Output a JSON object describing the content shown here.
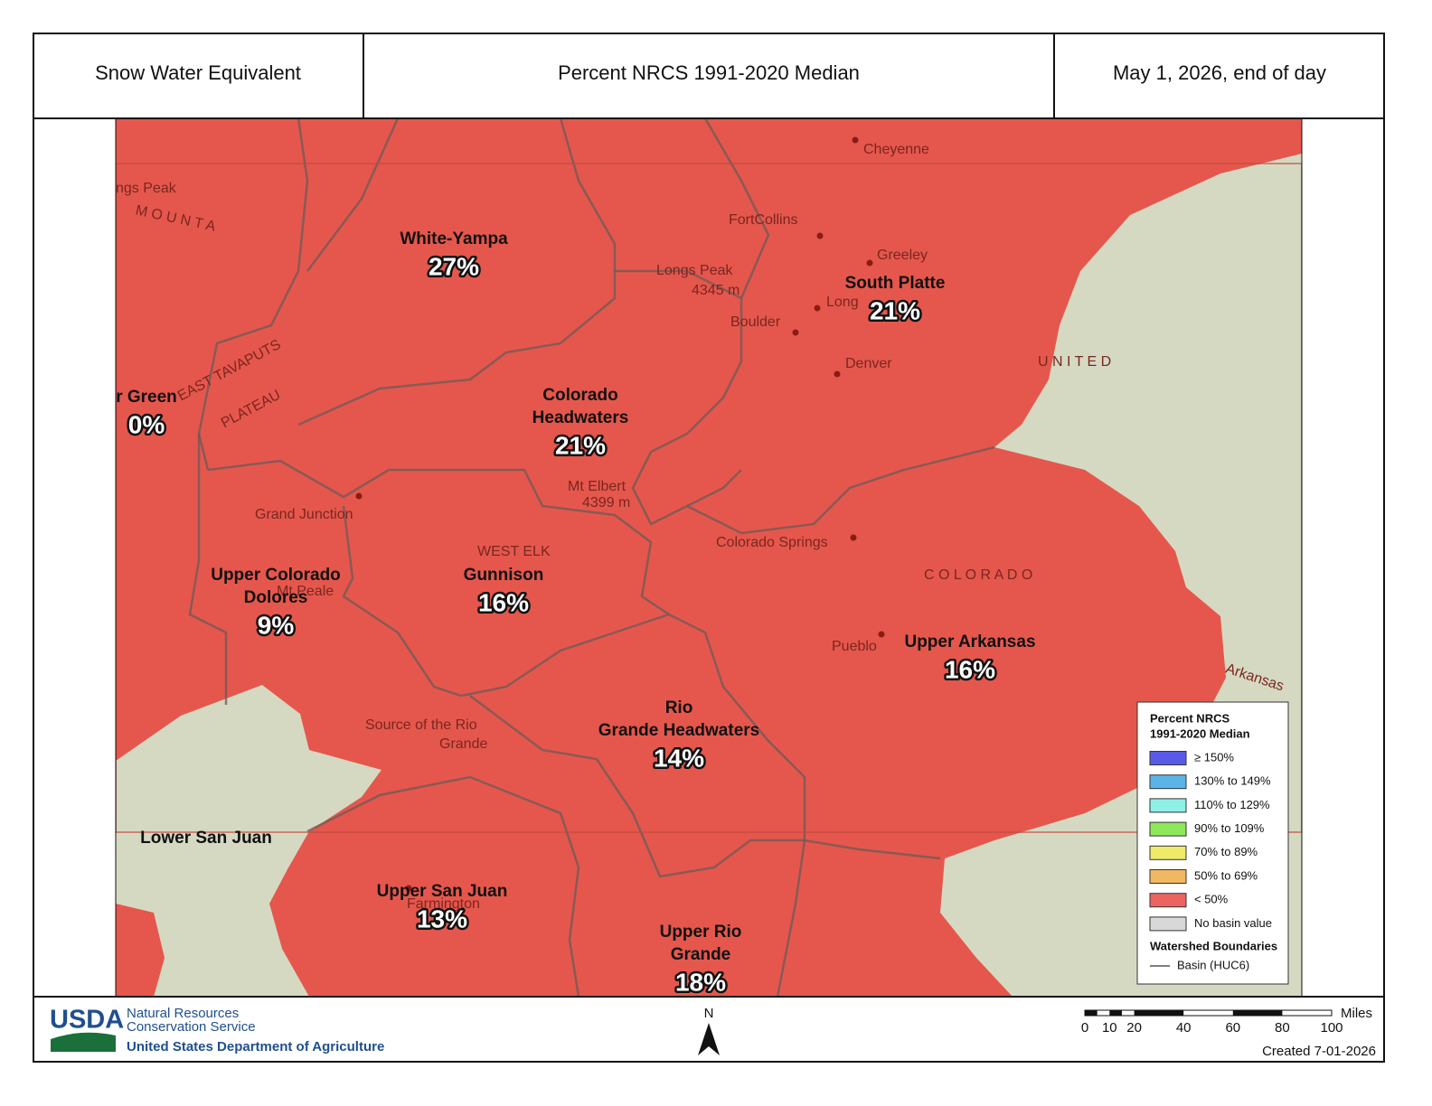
{
  "header": {
    "title": "Snow Water Equivalent",
    "metric": "Percent NRCS 1991-2020 Median",
    "date": "May 1, 2026, end of day"
  },
  "basins": [
    {
      "name_lines": [
        "White-Yampa"
      ],
      "percent": "27%"
    },
    {
      "name_lines": [
        "South Platte"
      ],
      "percent": "21%"
    },
    {
      "name_lines": [
        "r Green"
      ],
      "percent": "0%"
    },
    {
      "name_lines": [
        "Colorado",
        "Headwaters"
      ],
      "percent": "21%"
    },
    {
      "name_lines": [
        "Upper Colorado",
        "Dolores"
      ],
      "percent": "9%"
    },
    {
      "name_lines": [
        "Gunnison"
      ],
      "percent": "16%"
    },
    {
      "name_lines": [
        "Upper Arkansas"
      ],
      "percent": "16%"
    },
    {
      "name_lines": [
        "Rio",
        "Grande Headwaters"
      ],
      "percent": "14%"
    },
    {
      "name_lines": [
        "Lower San Juan"
      ]
    },
    {
      "name_lines": [
        "Upper San Juan"
      ],
      "percent": "13%"
    },
    {
      "name_lines": [
        "Upper Rio",
        "Grande"
      ],
      "percent": "18%"
    }
  ],
  "places": [
    "Cheyenne",
    "FortCollins",
    "Greeley",
    "Longs Peak",
    "4345 m",
    "Long",
    "Boulder",
    "Denver",
    "U N I T E D",
    "Grand Junction",
    "Mt Elbert",
    "4399 m",
    "Colorado Springs",
    "C O L O R A D O",
    "WEST ELK",
    "Mt Peale",
    "Pueblo",
    "Arkansas",
    "Source of the Rio",
    "Grande",
    "Farmington",
    "ngs Peak",
    "M O U N T A",
    "EAST TAVAPUTS",
    "PLATEAU"
  ],
  "legend": {
    "title_lines": [
      "Percent NRCS",
      "1991-2020 Median"
    ],
    "items": [
      {
        "label": "≥ 150%",
        "color": "#5a5ae8"
      },
      {
        "label": "130% to 149%",
        "color": "#5ab4e8"
      },
      {
        "label": "110% to 129%",
        "color": "#8ef0e6"
      },
      {
        "label": "90% to 109%",
        "color": "#8ee85a"
      },
      {
        "label": "70% to 89%",
        "color": "#eeea6a"
      },
      {
        "label": "50% to 69%",
        "color": "#f0b860"
      },
      {
        "label": "< 50%",
        "color": "#ec6460"
      },
      {
        "label": "No basin value",
        "color": "#d8d8d8"
      }
    ],
    "boundaries_title": "Watershed Boundaries",
    "boundary_label": "Basin (HUC6)"
  },
  "footer": {
    "logo": "USDA",
    "agency_lines": [
      "Natural Resources",
      "Conservation Service"
    ],
    "department": "United States Department of Agriculture",
    "north": "N",
    "scale": {
      "ticks": [
        0,
        10,
        20,
        40,
        60,
        80,
        100
      ],
      "unit": "Miles"
    },
    "created": "Created 7-01-2026"
  }
}
